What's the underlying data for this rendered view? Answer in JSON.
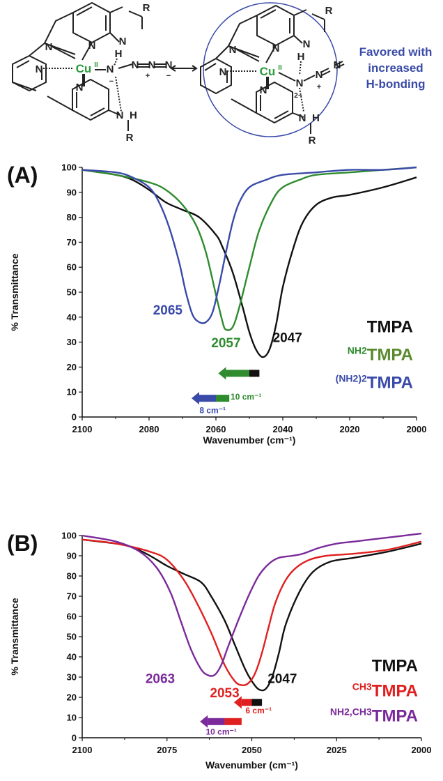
{
  "scheme": {
    "label_cu": "Cu",
    "label_cu_ox": "II",
    "label_N": "N",
    "label_H": "H",
    "label_R": "R",
    "label_minus": "−",
    "label_2minus": "2−",
    "label_plus": "+",
    "favored_caption": [
      "Favored with",
      "increased",
      "H-bonding"
    ],
    "colors": {
      "cu": "#2a9a3a",
      "caption": "#3a4aa8",
      "bond": "#222222",
      "circle": "#3a4aa8"
    }
  },
  "chart_data": [
    {
      "type": "line",
      "panel_label": "(A)",
      "xlabel": "Wavenumber (cm⁻¹)",
      "ylabel": "% Transmittance",
      "xlim": [
        2100,
        2000
      ],
      "ylim": [
        0,
        100
      ],
      "xticks": [
        2100,
        2080,
        2060,
        2040,
        2020,
        2000
      ],
      "yticks": [
        0,
        10,
        20,
        30,
        40,
        50,
        60,
        70,
        80,
        90,
        100
      ],
      "series": [
        {
          "name": "TMPA",
          "color": "#111111",
          "x": [
            2100,
            2090,
            2085,
            2080,
            2075,
            2070,
            2065,
            2060,
            2058,
            2055,
            2052,
            2050,
            2048,
            2046,
            2044,
            2042,
            2040,
            2037,
            2034,
            2030,
            2025,
            2020,
            2010,
            2000
          ],
          "y": [
            99,
            97,
            95,
            91,
            86,
            83,
            80,
            73,
            68,
            58,
            44,
            34,
            27,
            24,
            27,
            37,
            52,
            67,
            78,
            85,
            88,
            89,
            92,
            96
          ]
        },
        {
          "name": "NH2TMPA",
          "color": "#2e8b2e",
          "x": [
            2100,
            2090,
            2080,
            2075,
            2070,
            2066,
            2063,
            2060,
            2058,
            2057,
            2055,
            2053,
            2050,
            2047,
            2043,
            2040,
            2035,
            2030,
            2020,
            2010,
            2000
          ],
          "y": [
            99,
            97,
            94,
            91,
            85,
            77,
            66,
            49,
            38,
            35,
            36,
            44,
            60,
            75,
            87,
            92,
            95,
            97,
            98,
            99,
            100
          ]
        },
        {
          "name": "(NH2)2TMPA",
          "color": "#3a4aa8",
          "x": [
            2100,
            2090,
            2085,
            2080,
            2077,
            2074,
            2071,
            2069,
            2067,
            2065,
            2063,
            2061,
            2059,
            2057,
            2055,
            2053,
            2050,
            2045,
            2040,
            2030,
            2020,
            2010,
            2000
          ],
          "y": [
            99,
            98,
            96,
            92,
            86,
            76,
            62,
            50,
            41,
            38,
            38,
            42,
            53,
            66,
            78,
            86,
            92,
            95,
            97,
            98,
            99,
            99,
            100
          ]
        }
      ],
      "annotations": [
        {
          "text": "2065",
          "color": "#3a4aa8",
          "x": 2070,
          "y": 41,
          "anchor": "end"
        },
        {
          "text": "2057",
          "color": "#2e8b2e",
          "x": 2057,
          "y": 28,
          "anchor": "middle"
        },
        {
          "text": "2047",
          "color": "#111111",
          "x": 2043,
          "y": 30,
          "anchor": "start"
        },
        {
          "text": "10 cm⁻¹",
          "color": "#2e8b2e",
          "x": 2051,
          "y": 7,
          "anchor": "middle"
        },
        {
          "text": "8 cm⁻¹",
          "color": "#3a4aa8",
          "x": 2061,
          "y": 1.5,
          "anchor": "middle"
        }
      ],
      "arrows": [
        {
          "y": 17.5,
          "segments": [
            {
              "from": 2050,
              "to": 2047,
              "color": "#111111"
            },
            {
              "from": 2057,
              "to": 2050,
              "color": "#2e8b2e"
            }
          ]
        },
        {
          "y": 7.5,
          "segments": [
            {
              "from": 2060,
              "to": 2056,
              "color": "#2e8b2e"
            },
            {
              "from": 2065,
              "to": 2060,
              "color": "#3a4aa8"
            }
          ]
        }
      ],
      "legend": [
        {
          "sup": "",
          "text": "TMPA",
          "color": "#111111",
          "sup_color": "#111111"
        },
        {
          "sup": "NH2",
          "text": "TMPA",
          "color": "#5a8a2e",
          "sup_color": "#2e8b2e"
        },
        {
          "sup": "(NH2)2",
          "text": "TMPA",
          "color": "#3a4aa8",
          "sup_color": "#3a4aa8"
        }
      ]
    },
    {
      "type": "line",
      "panel_label": "(B)",
      "xlabel": "Wavenumber (cm⁻¹)",
      "ylabel": "% Transmittance",
      "xlim": [
        2100,
        2000
      ],
      "ylim": [
        0,
        100
      ],
      "xticks": [
        2100,
        2075,
        2050,
        2025,
        2000
      ],
      "yticks": [
        0,
        10,
        20,
        30,
        40,
        50,
        60,
        70,
        80,
        90,
        100
      ],
      "series": [
        {
          "name": "TMPA",
          "color": "#111111",
          "x": [
            2100,
            2090,
            2085,
            2080,
            2075,
            2070,
            2065,
            2062,
            2058,
            2055,
            2052,
            2050,
            2048,
            2046,
            2044,
            2042,
            2040,
            2036,
            2032,
            2027,
            2020,
            2010,
            2000
          ],
          "y": [
            98,
            96,
            94,
            90,
            85,
            81,
            77,
            70,
            58,
            46,
            34,
            28,
            24,
            24,
            30,
            42,
            56,
            72,
            82,
            87,
            89,
            92,
            96
          ]
        },
        {
          "name": "CH3TMPA",
          "color": "#e02020",
          "x": [
            2100,
            2090,
            2080,
            2075,
            2070,
            2066,
            2062,
            2058,
            2055,
            2053,
            2051,
            2049,
            2047,
            2045,
            2043,
            2040,
            2037,
            2033,
            2028,
            2020,
            2010,
            2000
          ],
          "y": [
            98,
            96,
            92,
            88,
            78,
            66,
            52,
            36,
            28,
            26,
            27,
            32,
            42,
            55,
            67,
            78,
            84,
            88,
            90,
            91,
            93,
            97
          ]
        },
        {
          "name": "NH2,CH3TMPA",
          "color": "#7a2a9a",
          "x": [
            2100,
            2090,
            2083,
            2078,
            2074,
            2071,
            2068,
            2065,
            2063,
            2061,
            2059,
            2057,
            2054,
            2051,
            2048,
            2045,
            2042,
            2038,
            2035,
            2030,
            2025,
            2020,
            2010,
            2000
          ],
          "y": [
            100,
            97,
            92,
            84,
            72,
            58,
            44,
            34,
            31,
            31,
            36,
            45,
            58,
            70,
            80,
            86,
            89,
            90,
            91,
            94,
            96,
            97,
            99,
            101
          ]
        }
      ],
      "annotations": [
        {
          "text": "2063",
          "color": "#7a2a9a",
          "x": 2077,
          "y": 27,
          "anchor": "middle"
        },
        {
          "text": "2053",
          "color": "#e02020",
          "x": 2058,
          "y": 20,
          "anchor": "middle"
        },
        {
          "text": "2047",
          "color": "#111111",
          "x": 2041,
          "y": 27,
          "anchor": "middle"
        },
        {
          "text": "6 cm⁻¹",
          "color": "#e02020",
          "x": 2048,
          "y": 12,
          "anchor": "middle"
        },
        {
          "text": "10 cm⁻¹",
          "color": "#7a2a9a",
          "x": 2059,
          "y": 1.5,
          "anchor": "middle"
        }
      ],
      "arrows": [
        {
          "y": 17.5,
          "segments": [
            {
              "from": 2050,
              "to": 2047,
              "color": "#111111"
            },
            {
              "from": 2053,
              "to": 2050,
              "color": "#e02020"
            }
          ]
        },
        {
          "y": 8,
          "segments": [
            {
              "from": 2058,
              "to": 2053,
              "color": "#e02020"
            },
            {
              "from": 2063,
              "to": 2058,
              "color": "#7a2a9a"
            }
          ]
        }
      ],
      "legend": [
        {
          "sup": "",
          "text": "TMPA",
          "color": "#111111",
          "sup_color": "#111111"
        },
        {
          "sup": "CH3",
          "text": "TMPA",
          "color": "#e02020",
          "sup_color": "#e02020"
        },
        {
          "sup": "NH2,CH3",
          "text": "TMPA",
          "color": "#7a2a9a",
          "sup_color": "#7a2a9a"
        }
      ]
    }
  ]
}
